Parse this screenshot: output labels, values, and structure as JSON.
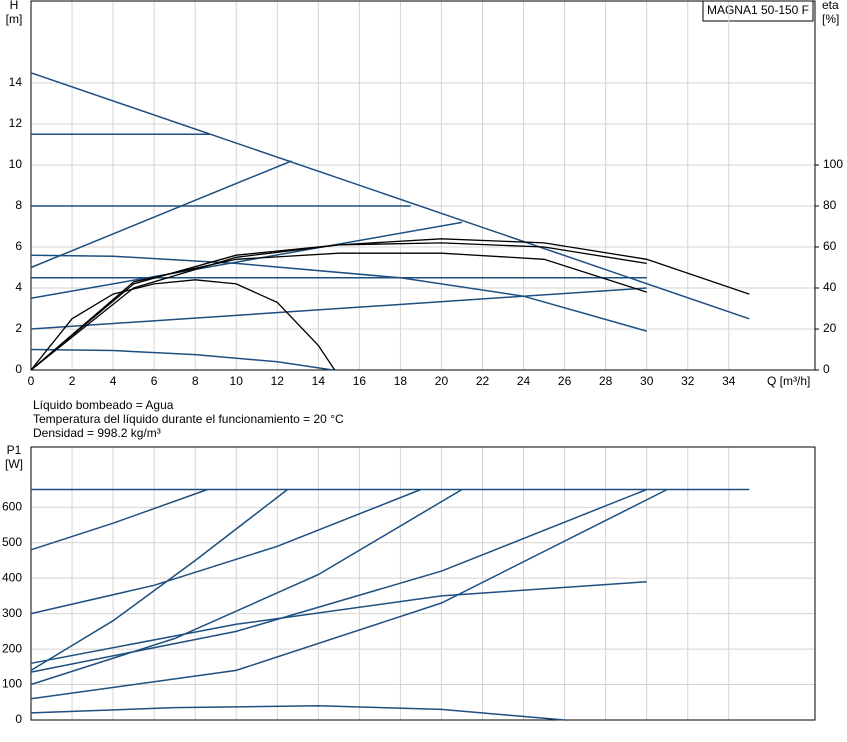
{
  "chart_data": [
    {
      "type": "line",
      "title": "MAGNA1 50-150 F",
      "ylabel": "H",
      "yunit": "[m]",
      "y2label": "eta",
      "y2unit": "[%]",
      "xlabel": "Q [m³/h]",
      "xlim": [
        0,
        38.2
      ],
      "xticks": [
        0,
        2,
        4,
        6,
        8,
        10,
        12,
        14,
        16,
        18,
        20,
        22,
        24,
        26,
        28,
        30,
        32,
        34
      ],
      "ylim": [
        0,
        18
      ],
      "yticks": [
        0,
        2,
        4,
        6,
        8,
        10,
        12,
        14
      ],
      "y2lim": [
        0,
        180
      ],
      "y2ticks": [
        0,
        20,
        40,
        60,
        80,
        100
      ],
      "grid": true,
      "notes": [
        "Líquido bombeado = Agua",
        "Temperatura del líquido durante el funcionamiento = 20 °C",
        "Densidad = 998.2 kg/m³"
      ],
      "series": [
        {
          "color": "#1d4f80",
          "x": [
            0,
            35
          ],
          "values": [
            14.5,
            2.5
          ]
        },
        {
          "color": "#1d4f80",
          "x": [
            0,
            8.7
          ],
          "values": [
            11.5,
            11.5
          ]
        },
        {
          "color": "#1d4f80",
          "x": [
            0,
            18.5
          ],
          "values": [
            8,
            8
          ]
        },
        {
          "color": "#1d4f80",
          "x": [
            0,
            30
          ],
          "values": [
            4.5,
            4.5
          ]
        },
        {
          "color": "#1d4f80",
          "x": [
            0,
            12.7
          ],
          "values": [
            5,
            10.2
          ]
        },
        {
          "color": "#1d4f80",
          "x": [
            0,
            21
          ],
          "values": [
            3.5,
            7.2
          ]
        },
        {
          "color": "#1d4f80",
          "x": [
            0,
            30
          ],
          "values": [
            2,
            4
          ]
        },
        {
          "color": "#1d4f80",
          "x": [
            0,
            4,
            10,
            18,
            24,
            30
          ],
          "values": [
            5.6,
            5.55,
            5.2,
            4.5,
            3.6,
            1.9
          ]
        },
        {
          "color": "#1d4f80",
          "x": [
            0,
            4,
            8,
            12,
            14.7
          ],
          "values": [
            1,
            0.95,
            0.75,
            0.4,
            0
          ]
        },
        {
          "color": "#000000",
          "axis": "y2",
          "x": [
            0,
            2,
            4,
            6,
            8,
            10,
            12,
            14,
            14.8
          ],
          "values": [
            0,
            25,
            37,
            42,
            44,
            42,
            33,
            12,
            0
          ]
        },
        {
          "color": "#000000",
          "axis": "y2",
          "x": [
            0,
            5,
            10,
            15,
            20,
            25,
            30,
            35
          ],
          "values": [
            0,
            40,
            55,
            61,
            64,
            62,
            54,
            37
          ]
        },
        {
          "color": "#000000",
          "axis": "y2",
          "x": [
            0,
            5,
            10,
            15,
            20,
            25,
            30
          ],
          "values": [
            0,
            43,
            54,
            57,
            57,
            54,
            38
          ]
        },
        {
          "color": "#000000",
          "axis": "y2",
          "x": [
            0,
            5,
            10,
            15,
            20,
            25,
            30
          ],
          "values": [
            0,
            42,
            56,
            61,
            62,
            60,
            52
          ]
        }
      ]
    },
    {
      "type": "line",
      "ylabel": "P1",
      "yunit": "[W]",
      "xlim": [
        0,
        38.2
      ],
      "xticks": [
        0,
        2,
        4,
        6,
        8,
        10,
        12,
        14,
        16,
        18,
        20,
        22,
        24,
        26,
        28,
        30,
        32,
        34
      ],
      "ylim": [
        0,
        770
      ],
      "yticks": [
        0,
        100,
        200,
        300,
        400,
        500,
        600
      ],
      "grid": true,
      "series": [
        {
          "color": "#1d4f80",
          "x": [
            0,
            35
          ],
          "values": [
            650,
            650
          ]
        },
        {
          "color": "#1d4f80",
          "x": [
            0,
            4,
            8.6
          ],
          "values": [
            480,
            555,
            650
          ]
        },
        {
          "color": "#1d4f80",
          "x": [
            0,
            6,
            12,
            19
          ],
          "values": [
            300,
            380,
            490,
            650
          ]
        },
        {
          "color": "#1d4f80",
          "x": [
            0,
            4,
            8,
            12.5
          ],
          "values": [
            140,
            280,
            450,
            650
          ]
        },
        {
          "color": "#1d4f80",
          "x": [
            0,
            7,
            14,
            21
          ],
          "values": [
            100,
            230,
            410,
            650
          ]
        },
        {
          "color": "#1d4f80",
          "x": [
            0,
            10,
            20,
            30
          ],
          "values": [
            160,
            270,
            350,
            390
          ]
        },
        {
          "color": "#1d4f80",
          "x": [
            0,
            10,
            20,
            30
          ],
          "values": [
            135,
            250,
            420,
            650
          ]
        },
        {
          "color": "#1d4f80",
          "x": [
            0,
            10,
            20,
            31
          ],
          "values": [
            60,
            140,
            330,
            650
          ]
        },
        {
          "color": "#1d4f80",
          "x": [
            0,
            7,
            14,
            20,
            26
          ],
          "values": [
            20,
            35,
            40,
            30,
            0
          ]
        }
      ]
    }
  ]
}
